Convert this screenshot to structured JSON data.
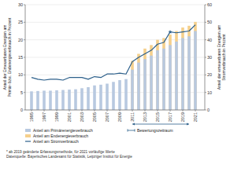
{
  "chart_data": {
    "type": "bar",
    "x": [
      1995,
      1996,
      1997,
      1998,
      1999,
      2000,
      2001,
      2002,
      2003,
      2004,
      2005,
      2006,
      2007,
      2008,
      2009,
      2010,
      2011,
      2012,
      2013,
      2014,
      2015,
      2016,
      2017,
      2018,
      2019,
      2020,
      2021
    ],
    "xlim": [
      1994,
      2022.5
    ],
    "xticks": [
      1995,
      1997,
      1999,
      2001,
      2003,
      2005,
      2007,
      2009,
      2011,
      2013,
      2015,
      2017,
      2019,
      2021
    ],
    "ylim": [
      0,
      30
    ],
    "yticks": [
      0,
      5,
      10,
      15,
      20,
      25,
      30
    ],
    "y2lim": [
      0,
      60
    ],
    "y2ticks": [
      0,
      10,
      20,
      30,
      40,
      50,
      60
    ],
    "ylabel": "Anteil der Erneuerbaren Energien am\nPrimär- bzw. Endenergieverbrauch in Prozent",
    "y2label": "Anteil der erneuerbaren Energien am\nStromverbrauch in Prozent",
    "series": [
      {
        "name": "Anteil am Primärenergieverbrauch",
        "type": "bar",
        "color": "#b8c9e0",
        "values": [
          5.3,
          5.4,
          5.5,
          5.5,
          5.6,
          5.7,
          5.8,
          5.9,
          6.2,
          6.5,
          7.0,
          7.2,
          7.5,
          8.0,
          8.5,
          8.8,
          11.5,
          13.5,
          14.5,
          15.5,
          17.0,
          17.5,
          18.5,
          19.5,
          20.5,
          21.0,
          22.5
        ]
      },
      {
        "name": "Anteil am Endenergieverbrauch",
        "type": "bar",
        "color": "#f5d08c",
        "values": [
          0,
          0,
          0,
          0,
          0,
          0,
          0,
          0,
          0,
          0,
          0,
          0,
          0,
          0,
          0,
          0,
          14.0,
          16.0,
          17.5,
          18.5,
          20.0,
          20.5,
          21.5,
          22.5,
          23.5,
          24.0,
          25.1
        ]
      },
      {
        "name": "Anteil am Stromverbrauch",
        "type": "line",
        "color": "#2c5f8a",
        "axis": "y2",
        "values": [
          18.5,
          17.5,
          17.0,
          17.5,
          17.5,
          17.0,
          18.5,
          18.5,
          18.5,
          17.5,
          19.0,
          18.5,
          20.5,
          20.5,
          21.0,
          20.5,
          27.5,
          30.0,
          32.0,
          34.0,
          37.5,
          38.5,
          44.5,
          44.0,
          44.5,
          45.0,
          48.5
        ]
      }
    ],
    "points": [
      {
        "x": 2017,
        "y": 44.5,
        "axis": "y2",
        "marker": "star",
        "color": "#2c5f8a"
      }
    ],
    "ranges": [
      {
        "name": "Bewertungszeitraum",
        "start": 2011,
        "end": 2020,
        "color": "#2c5f8a"
      }
    ],
    "annotations": [
      {
        "text": "* ab 2019 geänderte Erfassungsmethode, für 2021 vorläufige Werte\nDatenquelle: Bayerisches Landesamt für Statistik, Leipziger Institut für Energie"
      }
    ],
    "grid": true,
    "legend": "bottom"
  }
}
